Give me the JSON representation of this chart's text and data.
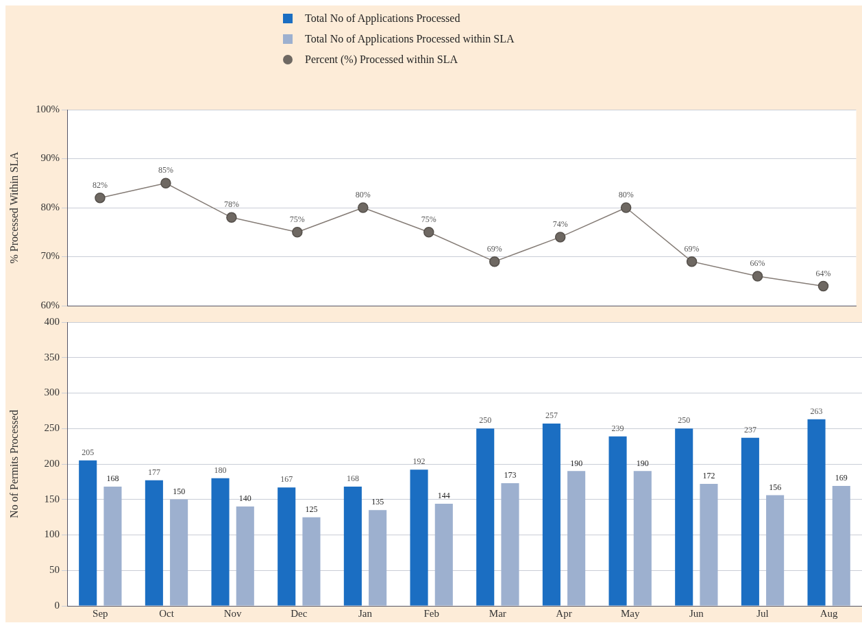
{
  "chart_data": [
    {
      "type": "line",
      "ylabel": "% Processed Within SLA",
      "categories": [
        null,
        null,
        null,
        null,
        null,
        null,
        null,
        null,
        null,
        null,
        null,
        null
      ],
      "series": [
        {
          "name": "Percent (%) Processed within SLA",
          "color": "#6e6862",
          "values": [
            82,
            85,
            78,
            75,
            80,
            75,
            69,
            74,
            80,
            69,
            66,
            64
          ],
          "value_labels": [
            "82%",
            "85%",
            "78%",
            "75%",
            "80%",
            "75%",
            "69%",
            "74%",
            "80%",
            "69%",
            "66%",
            "64%"
          ]
        }
      ],
      "ylim": [
        60,
        100
      ],
      "yticks": [
        {
          "value": 60,
          "label": "60%"
        },
        {
          "value": 70,
          "label": "70%"
        },
        {
          "value": 80,
          "label": "80%"
        },
        {
          "value": 90,
          "label": "90%"
        },
        {
          "value": 100,
          "label": "100%"
        }
      ],
      "grid": "y",
      "legend": "top",
      "marker": "circle",
      "line_style": "solid",
      "tick_labels": "y"
    },
    {
      "type": "bar",
      "ylabel": "No of Permits Processed",
      "categories": [
        "Sep",
        "Oct",
        "Nov",
        "Dec",
        "Jan",
        "Feb",
        "Mar",
        "Apr",
        "May",
        "Jun",
        "Jul",
        "Aug"
      ],
      "series": [
        {
          "name": "Total No of Applications Processed",
          "color": "#1b6ec2",
          "values": [
            205,
            177,
            180,
            167,
            168,
            192,
            250,
            257,
            239,
            250,
            237,
            263
          ]
        },
        {
          "name": "Total No of Applications Processed within SLA",
          "color": "#9db0cf",
          "values": [
            168,
            150,
            140,
            125,
            135,
            144,
            173,
            190,
            190,
            172,
            156,
            169
          ]
        }
      ],
      "ylim": [
        0,
        400
      ],
      "yticks": [
        0,
        50,
        100,
        150,
        200,
        250,
        300,
        350,
        400
      ],
      "grid": "y",
      "legend": "top",
      "data_labels": true
    }
  ]
}
